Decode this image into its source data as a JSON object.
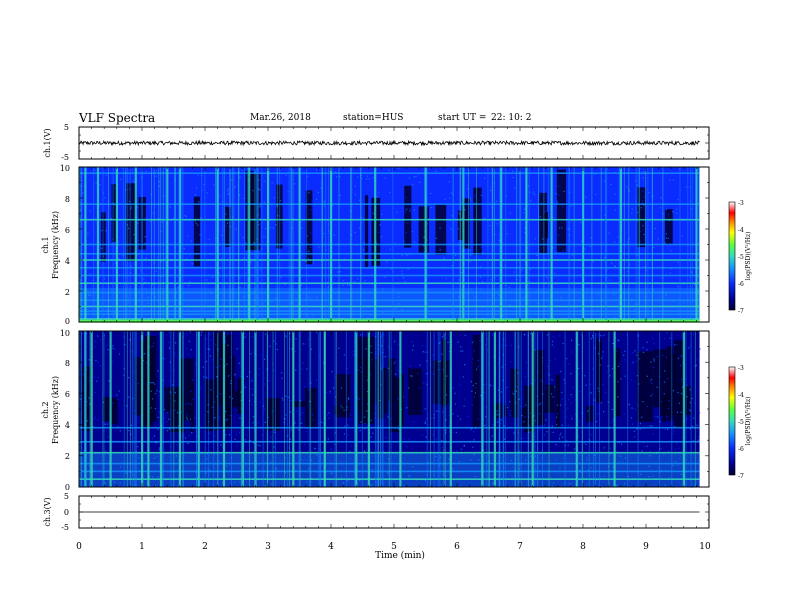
{
  "header": {
    "title": "VLF Spectra",
    "date": "Mar.26, 2018",
    "station": "station=HUS",
    "start_label": "start  UT  =",
    "start_time": "22: 10: 2"
  },
  "colors": {
    "background": "#ffffff",
    "ink": "#000000",
    "colormap": [
      "#000030",
      "#000090",
      "#0a2cff",
      "#1590ff",
      "#35ddbb",
      "#55ff44",
      "#ffff00",
      "#ff8000",
      "#ff0000",
      "#ffffff"
    ]
  },
  "chart_data": [
    {
      "type": "line",
      "id": "ch1-waveform",
      "ylabel": "ch.1(V)",
      "ylim": [
        -5,
        5
      ],
      "y_ticks": [
        "5",
        "-5"
      ],
      "xlim": [
        0,
        10
      ],
      "trace_level_V": 0.0,
      "trace_noise_amplitude_V": 0.6,
      "trace_end_min": 9.85
    },
    {
      "type": "heatmap",
      "id": "ch1-spectrogram",
      "ylabel_channel": "ch.1",
      "ylabel": "Frequency (kHz)",
      "ylim": [
        0,
        10
      ],
      "y_ticks": [
        "0",
        "2",
        "4",
        "6",
        "8",
        "10"
      ],
      "xlim": [
        0,
        10
      ],
      "data_end_min": 9.85,
      "colorbar": {
        "label": "log(PSD)(V²/Hz)",
        "range": [
          -7,
          -3
        ],
        "ticks": [
          "-3",
          "-4",
          "-5",
          "-6",
          "-7"
        ]
      },
      "horizontal_bands_kHz": [
        0.2,
        0.5,
        0.7,
        1.0,
        1.4,
        1.9,
        2.5,
        3.0,
        3.5,
        4.0,
        4.4,
        5.0,
        6.6,
        7.6,
        9.6
      ],
      "vertical_bursts_min": [
        0.1,
        0.3,
        0.6,
        0.9,
        1.4,
        1.6,
        2.2,
        2.7,
        3.0,
        3.5,
        4.0,
        4.7,
        5.5,
        6.1,
        6.7,
        7.1,
        7.5,
        8.0,
        8.6,
        9.8
      ]
    },
    {
      "type": "heatmap",
      "id": "ch2-spectrogram",
      "ylabel_channel": "ch.2",
      "ylabel": "Frequency (kHz)",
      "ylim": [
        0,
        10
      ],
      "y_ticks": [
        "0",
        "2",
        "4",
        "6",
        "8",
        "10"
      ],
      "xlim": [
        0,
        10
      ],
      "data_end_min": 9.85,
      "colorbar": {
        "label": "log(PSD)(V²/Hz)",
        "range": [
          -7,
          -3
        ],
        "ticks": [
          "-3",
          "-4",
          "-5",
          "-6",
          "-7"
        ]
      },
      "horizontal_bands_kHz": [
        0.5,
        1.0,
        1.5,
        2.2,
        2.9,
        3.8
      ],
      "vertical_bursts_min": [
        0.1,
        0.2,
        0.5,
        1.0,
        1.1,
        1.3,
        1.6,
        1.9,
        2.3,
        2.6,
        2.8,
        3.4,
        3.9,
        4.4,
        4.6,
        5.1,
        5.9,
        6.4,
        6.6,
        7.2,
        7.9,
        8.5,
        9.6
      ]
    },
    {
      "type": "line",
      "id": "ch3-waveform",
      "ylabel": "ch.3(V)",
      "ylim": [
        -5,
        5
      ],
      "y_ticks": [
        "5",
        "0",
        "-5"
      ],
      "xlim": [
        0,
        10
      ],
      "trace_level_V": 0.0,
      "trace_end_min": 9.85,
      "xlabel": "Time  (min)",
      "x_ticks": [
        "0",
        "1",
        "2",
        "3",
        "4",
        "5",
        "6",
        "7",
        "8",
        "9",
        "10"
      ]
    }
  ]
}
